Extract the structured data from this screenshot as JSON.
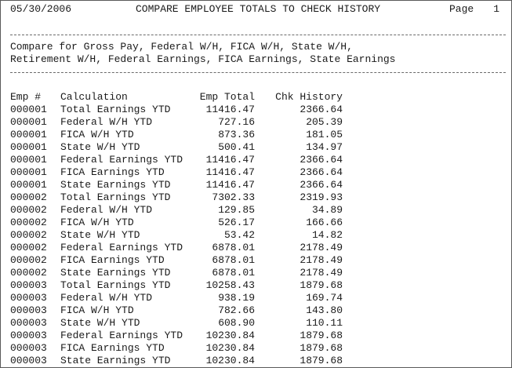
{
  "report": {
    "date": "05/30/2006",
    "title": "COMPARE EMPLOYEE TOTALS TO CHECK HISTORY",
    "page_label": "Page",
    "page_number": "1",
    "description_line1": "Compare for Gross Pay, Federal W/H, FICA W/H, State W/H,",
    "description_line2": "Retirement W/H, Federal Earnings, FICA Earnings, State Earnings"
  },
  "table": {
    "headers": {
      "emp": "Emp #",
      "calculation": "Calculation",
      "emp_total": "Emp Total",
      "chk_history": "Chk History"
    },
    "rows": [
      {
        "emp": "000001",
        "calculation": "Total Earnings YTD",
        "emp_total": "11416.47",
        "chk_history": "2366.64"
      },
      {
        "emp": "000001",
        "calculation": "Federal W/H YTD",
        "emp_total": "727.16",
        "chk_history": "205.39"
      },
      {
        "emp": "000001",
        "calculation": "FICA W/H YTD",
        "emp_total": "873.36",
        "chk_history": "181.05"
      },
      {
        "emp": "000001",
        "calculation": "State W/H YTD",
        "emp_total": "500.41",
        "chk_history": "134.97"
      },
      {
        "emp": "000001",
        "calculation": "Federal Earnings YTD",
        "emp_total": "11416.47",
        "chk_history": "2366.64"
      },
      {
        "emp": "000001",
        "calculation": "FICA Earnings YTD",
        "emp_total": "11416.47",
        "chk_history": "2366.64"
      },
      {
        "emp": "000001",
        "calculation": "State Earnings YTD",
        "emp_total": "11416.47",
        "chk_history": "2366.64"
      },
      {
        "emp": "000002",
        "calculation": "Total Earnings YTD",
        "emp_total": "7302.33",
        "chk_history": "2319.93"
      },
      {
        "emp": "000002",
        "calculation": "Federal W/H YTD",
        "emp_total": "129.85",
        "chk_history": "34.89"
      },
      {
        "emp": "000002",
        "calculation": "FICA W/H YTD",
        "emp_total": "526.17",
        "chk_history": "166.66"
      },
      {
        "emp": "000002",
        "calculation": "State W/H YTD",
        "emp_total": "53.42",
        "chk_history": "14.82"
      },
      {
        "emp": "000002",
        "calculation": "Federal Earnings YTD",
        "emp_total": "6878.01",
        "chk_history": "2178.49"
      },
      {
        "emp": "000002",
        "calculation": "FICA Earnings YTD",
        "emp_total": "6878.01",
        "chk_history": "2178.49"
      },
      {
        "emp": "000002",
        "calculation": "State Earnings YTD",
        "emp_total": "6878.01",
        "chk_history": "2178.49"
      },
      {
        "emp": "000003",
        "calculation": "Total Earnings YTD",
        "emp_total": "10258.43",
        "chk_history": "1879.68"
      },
      {
        "emp": "000003",
        "calculation": "Federal W/H YTD",
        "emp_total": "938.19",
        "chk_history": "169.74"
      },
      {
        "emp": "000003",
        "calculation": "FICA W/H YTD",
        "emp_total": "782.66",
        "chk_history": "143.80"
      },
      {
        "emp": "000003",
        "calculation": "State W/H YTD",
        "emp_total": "608.90",
        "chk_history": "110.11"
      },
      {
        "emp": "000003",
        "calculation": "Federal Earnings YTD",
        "emp_total": "10230.84",
        "chk_history": "1879.68"
      },
      {
        "emp": "000003",
        "calculation": "FICA Earnings YTD",
        "emp_total": "10230.84",
        "chk_history": "1879.68"
      },
      {
        "emp": "000003",
        "calculation": "State Earnings YTD",
        "emp_total": "10230.84",
        "chk_history": "1879.68"
      }
    ]
  }
}
